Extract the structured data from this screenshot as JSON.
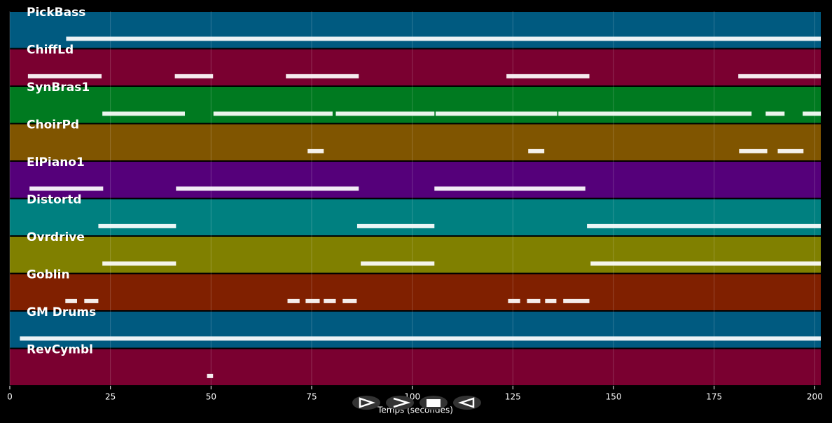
{
  "chart_data": {
    "type": "pianoroll",
    "xlabel": "Temps (secondes)",
    "xlim": [
      0,
      201.5
    ],
    "xticks": [
      0,
      25,
      50,
      75,
      100,
      125,
      150,
      175,
      200
    ],
    "grid": true,
    "tracks": [
      {
        "name": "PickBass",
        "color": "#005a80",
        "segments": [
          [
            14,
            201.5
          ]
        ]
      },
      {
        "name": "ChiffLd",
        "color": "#7a0030",
        "segments": [
          [
            4.5,
            22.8
          ],
          [
            41,
            50.5
          ],
          [
            68.6,
            86.7
          ],
          [
            123.4,
            144
          ],
          [
            181,
            201.5
          ]
        ]
      },
      {
        "name": "SynBras1",
        "color": "#007a20",
        "segments": [
          [
            23,
            43.5
          ],
          [
            50.6,
            80.2
          ],
          [
            81,
            105.5
          ],
          [
            105.8,
            136
          ],
          [
            136.3,
            184.3
          ],
          [
            187.8,
            192.5
          ],
          [
            197,
            201.5
          ]
        ]
      },
      {
        "name": "ChoirPd",
        "color": "#805500",
        "segments": [
          [
            74,
            78
          ],
          [
            128.8,
            132.8
          ],
          [
            181.2,
            188.2
          ],
          [
            190.8,
            197.2
          ]
        ]
      },
      {
        "name": "ElPiano1",
        "color": "#55007a",
        "segments": [
          [
            4.9,
            23.2
          ],
          [
            41.3,
            86.7
          ],
          [
            105.5,
            143
          ]
        ]
      },
      {
        "name": "Distortd",
        "color": "#008080",
        "segments": [
          [
            22,
            41.3
          ],
          [
            86.3,
            105.5
          ],
          [
            143.4,
            201.5
          ]
        ]
      },
      {
        "name": "Ovrdrive",
        "color": "#808000",
        "segments": [
          [
            23,
            41.3
          ],
          [
            87.2,
            105.5
          ],
          [
            144.3,
            201.5
          ]
        ]
      },
      {
        "name": "Goblin",
        "color": "#802000",
        "segments": [
          [
            13.8,
            16.7
          ],
          [
            18.5,
            22
          ],
          [
            69,
            72
          ],
          [
            73.5,
            77
          ],
          [
            78,
            81
          ],
          [
            82.7,
            86.2
          ],
          [
            123.8,
            126.8
          ],
          [
            128.5,
            131.8
          ],
          [
            133,
            135.8
          ],
          [
            137.5,
            144
          ]
        ]
      },
      {
        "name": "GM Drums",
        "color": "#005a80",
        "segments": [
          [
            2.5,
            201.5
          ]
        ]
      },
      {
        "name": "RevCymbl",
        "color": "#7a0030",
        "segments": [
          [
            49,
            50.5
          ]
        ]
      }
    ]
  }
}
